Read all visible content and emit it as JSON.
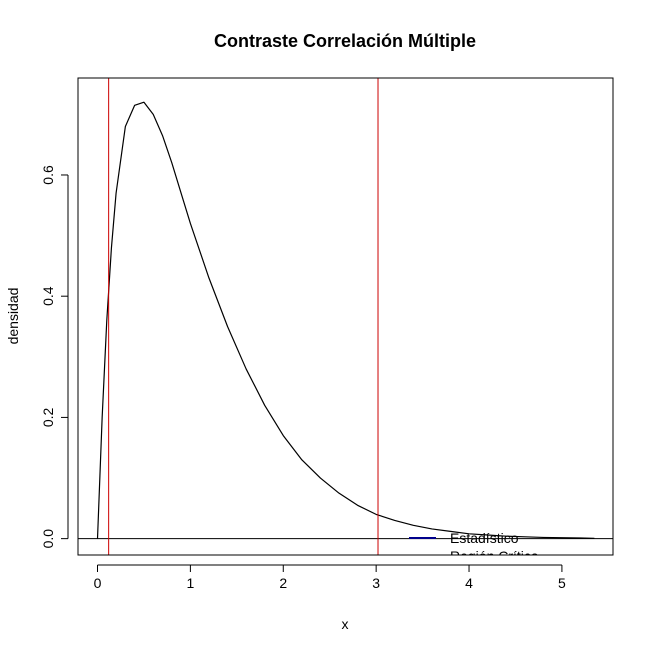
{
  "chart_data": {
    "type": "line",
    "title": "Contraste Correlación Múltiple",
    "xlabel": "x",
    "ylabel": "densidad",
    "xlim": [
      -0.21,
      5.55
    ],
    "ylim": [
      -0.027,
      0.76
    ],
    "x_ticks": [
      0,
      1,
      2,
      3,
      4,
      5
    ],
    "y_ticks": [
      0.0,
      0.2,
      0.4,
      0.6
    ],
    "x_tick_labels": [
      "0",
      "1",
      "2",
      "3",
      "4",
      "5"
    ],
    "y_tick_labels": [
      "0.0",
      "0.2",
      "0.4",
      "0.6"
    ],
    "grid": false,
    "series": [
      {
        "name": "",
        "color": "#000000",
        "x": [
          0.0,
          0.05,
          0.1,
          0.15,
          0.2,
          0.3,
          0.4,
          0.5,
          0.6,
          0.7,
          0.8,
          0.9,
          1.0,
          1.2,
          1.4,
          1.6,
          1.8,
          2.0,
          2.2,
          2.4,
          2.6,
          2.8,
          3.0,
          3.2,
          3.4,
          3.6,
          3.8,
          4.0,
          4.2,
          4.4,
          4.6,
          4.8,
          5.0,
          5.2,
          5.35
        ],
        "y": [
          0.0,
          0.2,
          0.36,
          0.48,
          0.57,
          0.68,
          0.715,
          0.72,
          0.7,
          0.665,
          0.62,
          0.57,
          0.52,
          0.43,
          0.35,
          0.28,
          0.22,
          0.17,
          0.13,
          0.1,
          0.075,
          0.055,
          0.04,
          0.03,
          0.022,
          0.016,
          0.012,
          0.008,
          0.006,
          0.004,
          0.003,
          0.002,
          0.0015,
          0.001,
          0.0005
        ]
      }
    ],
    "horizontal_lines": [
      {
        "y": 0.0,
        "color": "#000000"
      }
    ],
    "vertical_lines": [
      {
        "x": 0.12,
        "color": "#cc0000"
      },
      {
        "x": 3.02,
        "color": "#cc0000"
      }
    ],
    "legend": {
      "position": "bottom-right",
      "entries": [
        {
          "label": "Estadístico",
          "color": "#00008b"
        },
        {
          "label": "Región Crítica",
          "color": "#ff0000"
        }
      ]
    }
  }
}
